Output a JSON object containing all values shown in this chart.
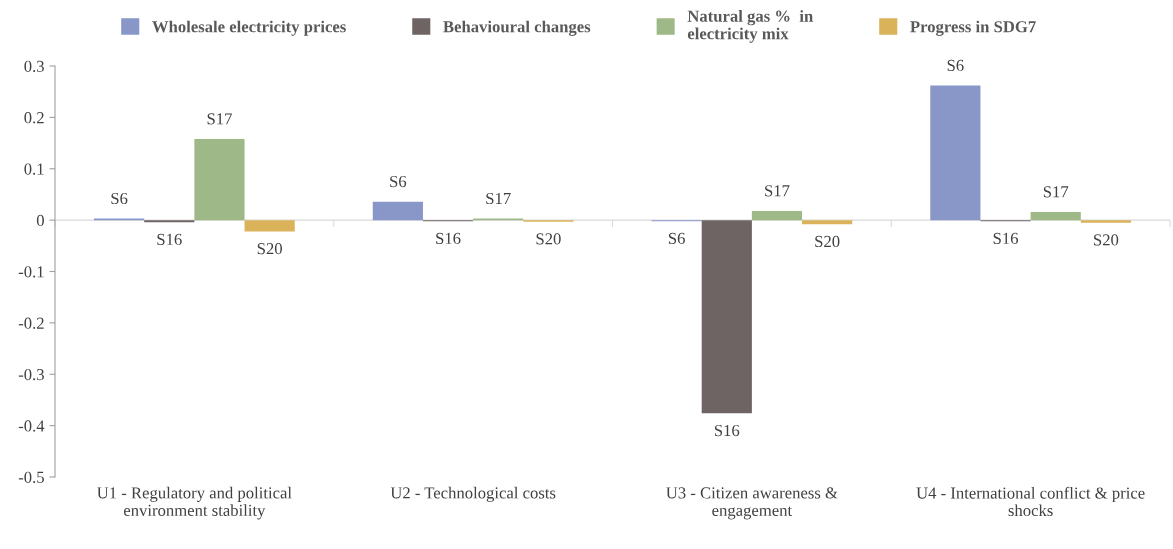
{
  "chart_data": {
    "type": "bar",
    "categories": [
      "U1 - Regulatory and political\nenvironment stability",
      "U2 - Technological costs",
      "U3 - Citizen awareness &\nengagement",
      "U4 - International conflict & price\nshocks"
    ],
    "series": [
      {
        "name": "Wholesale electricity prices",
        "color": "#8896c8",
        "values": [
          0.003,
          0.036,
          -0.002,
          0.262
        ],
        "value_labels": [
          "S6",
          "S6",
          "S6",
          "S6"
        ]
      },
      {
        "name": "Behavioural changes",
        "color": "#6e6463",
        "values": [
          -0.004,
          -0.002,
          -0.376,
          -0.002
        ],
        "value_labels": [
          "S16",
          "S16",
          "S16",
          "S16"
        ]
      },
      {
        "name": "Natural gas %  in\nelectricity mix",
        "color": "#9eb987",
        "values": [
          0.158,
          0.003,
          0.018,
          0.016
        ],
        "value_labels": [
          "S17",
          "S17",
          "S17",
          "S17"
        ]
      },
      {
        "name": "Progress in SDG7",
        "color": "#d9b25a",
        "values": [
          -0.022,
          -0.003,
          -0.008,
          -0.005
        ],
        "value_labels": [
          "S20",
          "S20",
          "S20",
          "S20"
        ]
      }
    ],
    "ylim": [
      -0.5,
      0.3
    ],
    "yticks": [
      -0.5,
      -0.4,
      -0.3,
      -0.2,
      -0.1,
      0,
      0.1,
      0.2,
      0.3
    ],
    "ref_lines": [
      {
        "axis": "y",
        "value": 0,
        "color": "#d9d9d9"
      }
    ],
    "grid": false,
    "legend": "top"
  }
}
